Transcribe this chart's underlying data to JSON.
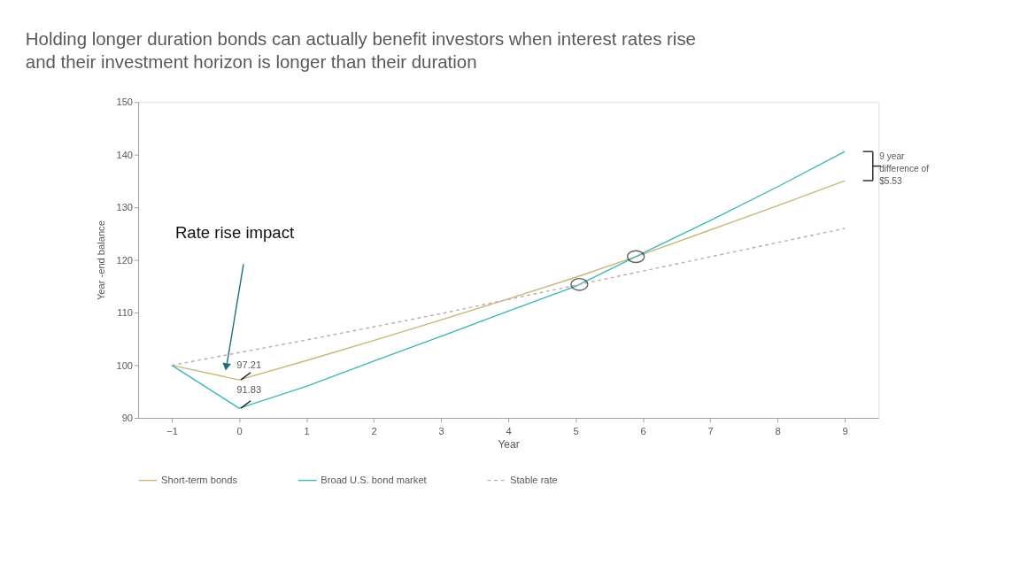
{
  "chart_data": {
    "type": "line",
    "title": "Holding longer duration bonds can actually benefit investors when interest rates rise and their investment horizon is longer than their duration",
    "xlabel": "Year",
    "ylabel": "Year -end balance",
    "x": [
      -1,
      0,
      1,
      2,
      3,
      4,
      5,
      6,
      7,
      8,
      9
    ],
    "series": [
      {
        "name": "Short-term bonds",
        "color": "#c8b77a",
        "line_style": "solid",
        "values": [
          100,
          97.21,
          100.9,
          104.7,
          108.6,
          112.6,
          116.7,
          121.1,
          125.7,
          130.3,
          135.07
        ]
      },
      {
        "name": "Broad U.S. bond market",
        "color": "#3bb8b8",
        "line_style": "solid",
        "values": [
          100,
          91.83,
          96.0,
          100.8,
          105.5,
          110.3,
          115.0,
          121.3,
          127.5,
          133.9,
          140.6
        ]
      },
      {
        "name": "Stable rate",
        "color": "#c0a8a8",
        "line_style": "dashed",
        "values": [
          100,
          102.4,
          104.8,
          107.3,
          109.8,
          112.5,
          115.2,
          117.9,
          120.6,
          123.3,
          126.0
        ]
      }
    ],
    "xlim": [
      -1.5,
      9.5
    ],
    "xticks": [
      -1,
      0,
      1,
      2,
      3,
      4,
      5,
      6,
      7,
      8,
      9
    ],
    "ylim": [
      90,
      150
    ],
    "yticks": [
      90,
      100,
      110,
      120,
      130,
      140,
      150
    ],
    "annotations": [
      "Rate rise impact",
      {
        "text": "97.21",
        "x": 0,
        "y": 97.21
      },
      {
        "text": "91.83",
        "x": 0,
        "y": 91.83
      },
      "9 year difference of $5.53"
    ],
    "grid": false,
    "legend": "bottom"
  }
}
